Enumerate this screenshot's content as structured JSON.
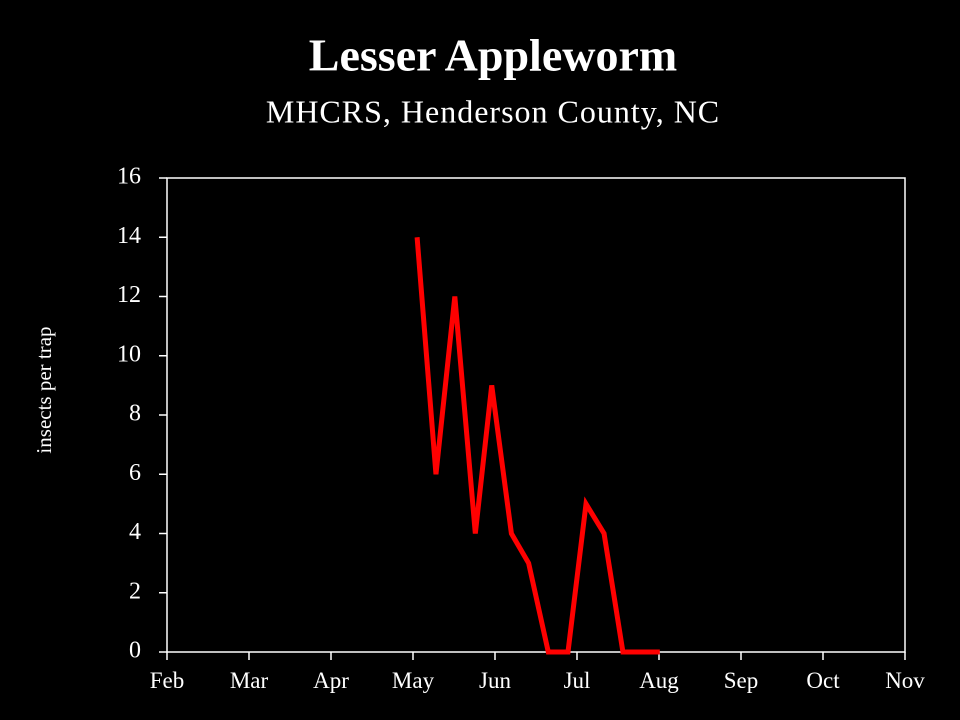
{
  "chart_data": {
    "type": "line",
    "title": "Lesser Appleworm",
    "subtitle": "MHCRS, Henderson County, NC",
    "y_label": "insects per trap",
    "x": [
      5.05,
      5.28,
      5.51,
      5.76,
      5.96,
      6.2,
      6.41,
      6.65,
      6.89,
      7.11,
      7.33,
      7.56,
      8.01
    ],
    "series": [
      {
        "name": "Lesser Appleworm",
        "color": "#ff0000",
        "values": [
          14,
          6,
          12,
          4,
          9,
          4,
          3,
          0,
          0,
          5,
          4,
          0,
          0
        ]
      }
    ],
    "xlim": [
      2,
      11
    ],
    "xticks": [
      {
        "value": 2,
        "label": "Feb"
      },
      {
        "value": 3,
        "label": "Mar"
      },
      {
        "value": 4,
        "label": "Apr"
      },
      {
        "value": 5,
        "label": "May"
      },
      {
        "value": 6,
        "label": "Jun"
      },
      {
        "value": 7,
        "label": "Jul"
      },
      {
        "value": 8,
        "label": "Aug"
      },
      {
        "value": 9,
        "label": "Sep"
      },
      {
        "value": 10,
        "label": "Oct"
      },
      {
        "value": 11,
        "label": "Nov"
      }
    ],
    "ylim": [
      0,
      16
    ],
    "yticks": [
      0,
      2,
      4,
      6,
      8,
      10,
      12,
      14,
      16
    ],
    "grid": false
  }
}
